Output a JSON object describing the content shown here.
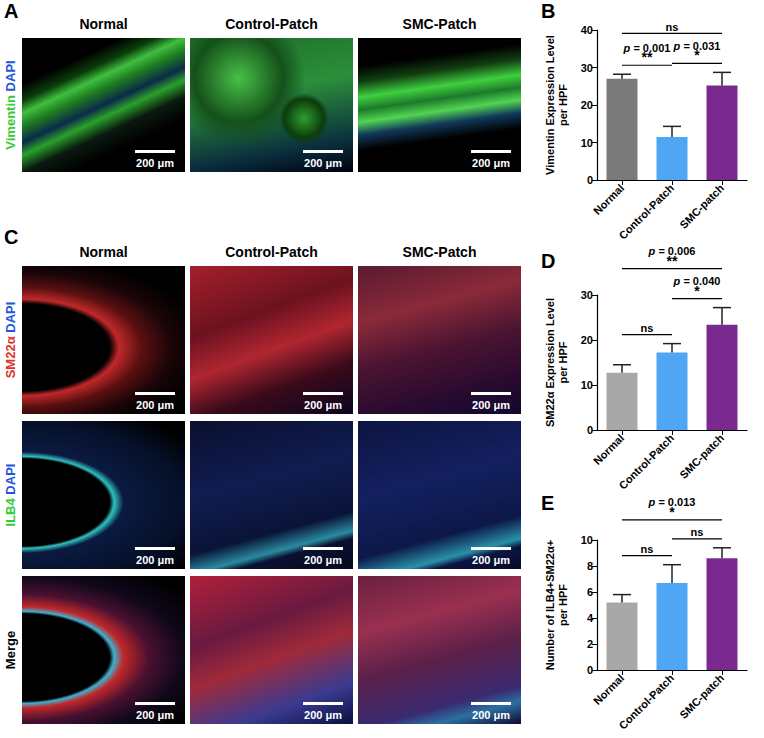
{
  "figure_panels": {
    "A": {
      "title": "A",
      "columns": [
        "Normal",
        "Control-Patch",
        "SMC-Patch"
      ],
      "stains": [
        {
          "text": "Vimentin",
          "color": "#33cc33"
        },
        {
          "text": "DAPI",
          "color": "#2255dd"
        }
      ],
      "scale_bar": "200 μm"
    },
    "C": {
      "title": "C",
      "columns": [
        "Normal",
        "Control-Patch",
        "SMC-Patch"
      ],
      "rows": [
        {
          "stains": [
            {
              "text": "SM22α",
              "color": "#e0302a"
            },
            {
              "text": "DAPI",
              "color": "#2255dd"
            }
          ]
        },
        {
          "stains": [
            {
              "text": "ILB4",
              "color": "#33cc33"
            },
            {
              "text": "DAPI",
              "color": "#2255dd"
            }
          ]
        },
        {
          "stains": [
            {
              "text": "Merge",
              "color": "#000000"
            }
          ]
        }
      ],
      "scale_bar": "200 μm"
    }
  },
  "chart_data": [
    {
      "type": "bar",
      "title": "B",
      "y_label": "Vimentin Expression Level\nper HPF",
      "categories": [
        "Normal",
        "Control-Patch",
        "SMC-patch"
      ],
      "values": [
        27,
        11.5,
        25.2
      ],
      "errors": [
        1.2,
        2.8,
        3.5
      ],
      "colors": [
        "#7a7a7a",
        "#4ea6f5",
        "#7a2a8f"
      ],
      "ylim": [
        0,
        40
      ],
      "yticks": [
        0,
        10,
        20,
        30,
        40
      ],
      "grid": false,
      "annotations": [
        {
          "between": [
            "Normal",
            "Control-Patch"
          ],
          "text": "**",
          "p": "p = 0.001"
        },
        {
          "between": [
            "Control-Patch",
            "SMC-patch"
          ],
          "text": "*",
          "p": "p = 0.031"
        },
        {
          "between": [
            "Normal",
            "SMC-patch"
          ],
          "text": "ns"
        }
      ]
    },
    {
      "type": "bar",
      "title": "D",
      "y_label": "SM22α Expression Level\nper HPF",
      "categories": [
        "Normal",
        "Control-Patch",
        "SMC-patch"
      ],
      "values": [
        12.7,
        17.2,
        23.4
      ],
      "errors": [
        1.8,
        2.0,
        3.8
      ],
      "colors": [
        "#a8a8a8",
        "#4ea6f5",
        "#7a2a8f"
      ],
      "ylim": [
        0,
        30
      ],
      "yticks": [
        0,
        10,
        20,
        30
      ],
      "grid": false,
      "annotations": [
        {
          "between": [
            "Normal",
            "Control-Patch"
          ],
          "text": "ns"
        },
        {
          "between": [
            "Control-Patch",
            "SMC-patch"
          ],
          "text": "*",
          "p": "p = 0.040"
        },
        {
          "between": [
            "Normal",
            "SMC-patch"
          ],
          "text": "**",
          "p": "p = 0.006"
        }
      ]
    },
    {
      "type": "bar",
      "title": "E",
      "y_label": "Number of ILB4+SM22α+\nper HPF",
      "categories": [
        "Normal",
        "Control-Patch",
        "SMC-patch"
      ],
      "values": [
        5.2,
        6.7,
        8.6
      ],
      "errors": [
        0.6,
        1.4,
        0.8
      ],
      "colors": [
        "#a8a8a8",
        "#4ea6f5",
        "#7a2a8f"
      ],
      "ylim": [
        0,
        10
      ],
      "yticks": [
        0,
        2,
        4,
        6,
        8,
        10
      ],
      "grid": false,
      "annotations": [
        {
          "between": [
            "Normal",
            "Control-Patch"
          ],
          "text": "ns"
        },
        {
          "between": [
            "Control-Patch",
            "SMC-patch"
          ],
          "text": "ns"
        },
        {
          "between": [
            "Normal",
            "SMC-patch"
          ],
          "text": "*",
          "p": "p = 0.013"
        }
      ]
    }
  ]
}
